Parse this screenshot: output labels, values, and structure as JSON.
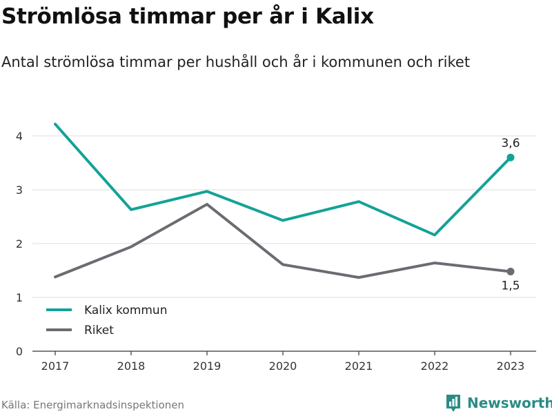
{
  "header": {
    "title": "Strömlösa timmar per år i Kalix",
    "subtitle": "Antal strömlösa timmar per hushåll och år i kommunen och riket"
  },
  "footer": {
    "source": "Källa: Energimarknadsinspektionen",
    "brand": "Newsworthy"
  },
  "colors": {
    "kalix": "#13a298",
    "riket": "#6b6b72",
    "grid": "#dddddd",
    "axis": "#333333",
    "brand": "#2a8c86"
  },
  "chart_data": {
    "type": "line",
    "x": [
      "2017",
      "2018",
      "2019",
      "2020",
      "2021",
      "2022",
      "2023"
    ],
    "series": [
      {
        "name": "Kalix kommun",
        "values": [
          4.22,
          2.63,
          2.97,
          2.43,
          2.78,
          2.16,
          3.6
        ],
        "end_label": "3,6"
      },
      {
        "name": "Riket",
        "values": [
          1.38,
          1.94,
          2.73,
          1.61,
          1.37,
          1.64,
          1.48
        ],
        "end_label": "1,5"
      }
    ],
    "ylim": [
      0,
      4.4
    ],
    "yticks": [
      "0",
      "1",
      "2",
      "3",
      "4"
    ],
    "grid": "horizontal",
    "legend": "bottom-left"
  }
}
